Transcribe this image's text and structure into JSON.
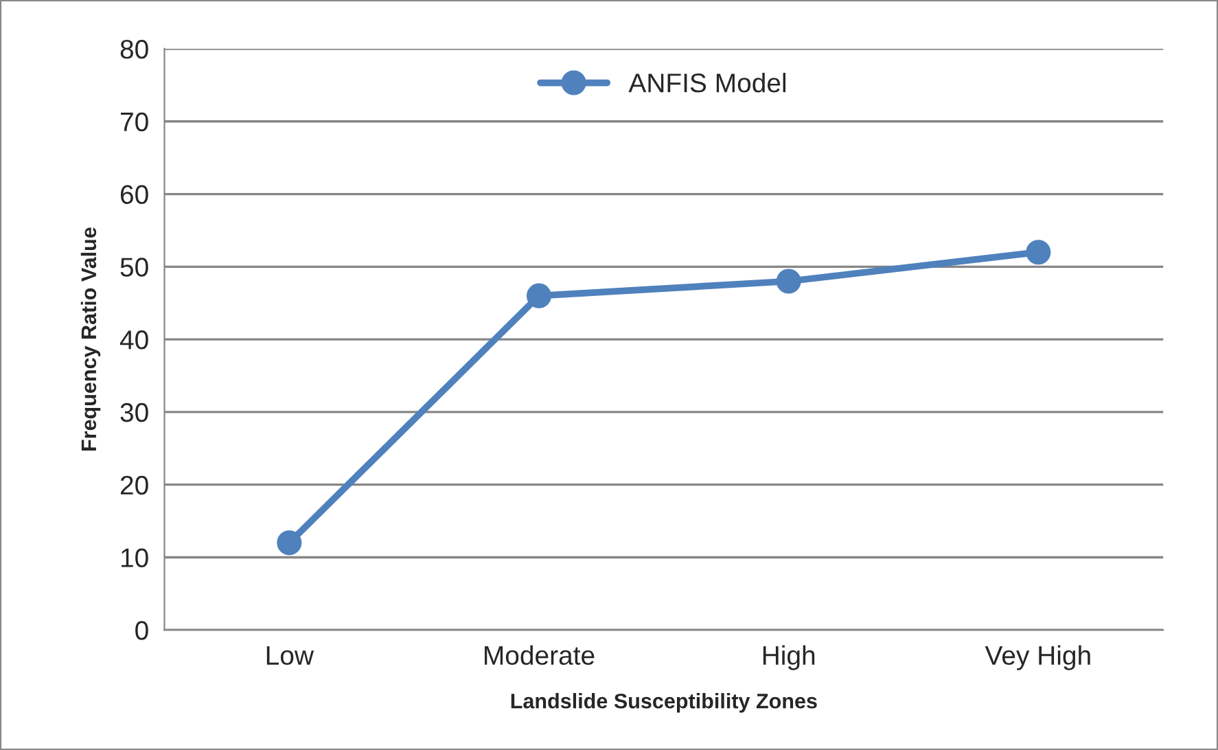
{
  "chart_data": {
    "type": "line",
    "xlabel": "Landslide Susceptibility Zones",
    "ylabel": "Frequency Ratio Value",
    "categories": [
      "Low",
      "Moderate",
      "High",
      "Vey High"
    ],
    "series": [
      {
        "name": "ANFIS Model",
        "color": "#4f81bd",
        "values": [
          12,
          46,
          48,
          52
        ]
      }
    ],
    "ylim": [
      0,
      80
    ],
    "yticks": [
      0,
      10,
      20,
      30,
      40,
      50,
      60,
      70,
      80
    ],
    "grid": "y",
    "legend": "top",
    "marker": "circle",
    "line_style": "solid"
  }
}
